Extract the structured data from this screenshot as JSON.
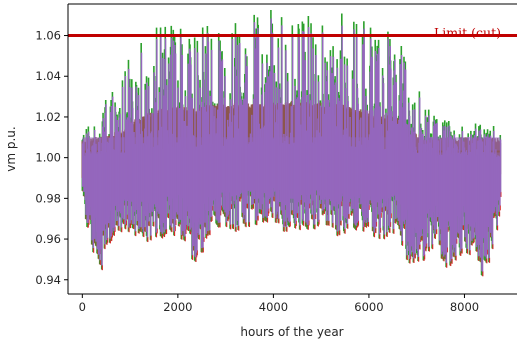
{
  "chart_data": {
    "type": "line",
    "xlabel": "hours of the year",
    "ylabel": "vm p.u.",
    "xlim": [
      -300,
      9100
    ],
    "ylim": [
      0.933,
      1.0755
    ],
    "xticks": [
      0,
      2000,
      4000,
      6000,
      8000
    ],
    "yticks": [
      0.94,
      0.96,
      0.98,
      1.0,
      1.02,
      1.04,
      1.06
    ],
    "ytick_labels": [
      "0.94",
      "0.96",
      "0.98",
      "1.00",
      "1.02",
      "1.04",
      "1.06"
    ],
    "grid": false,
    "limit_line": {
      "y": 1.06,
      "label": "Limit (cut)",
      "color": "#c00000"
    },
    "series_colors": [
      "#2ca02c",
      "#d62728",
      "#8c564b",
      "#9467bd"
    ],
    "envelope": {
      "x": [
        0,
        200,
        400,
        600,
        800,
        1000,
        1200,
        1400,
        1600,
        1800,
        2000,
        2200,
        2400,
        2600,
        2800,
        3000,
        3200,
        3400,
        3600,
        3800,
        4000,
        4200,
        4400,
        4600,
        4800,
        5000,
        5200,
        5400,
        5600,
        5800,
        6000,
        6200,
        6400,
        6600,
        6800,
        7000,
        7200,
        7400,
        7600,
        7800,
        8000,
        8200,
        8400,
        8600,
        8760
      ],
      "max": [
        1.018,
        1.02,
        1.025,
        1.03,
        1.035,
        1.05,
        1.058,
        1.06,
        1.062,
        1.065,
        1.07,
        1.068,
        1.064,
        1.066,
        1.068,
        1.067,
        1.069,
        1.068,
        1.07,
        1.069,
        1.071,
        1.068,
        1.07,
        1.069,
        1.072,
        1.071,
        1.068,
        1.07,
        1.067,
        1.066,
        1.064,
        1.06,
        1.062,
        1.06,
        1.045,
        1.04,
        1.025,
        1.02,
        1.018,
        1.016,
        1.015,
        1.016,
        1.015,
        1.014,
        1.012
      ],
      "min": [
        0.978,
        0.955,
        0.945,
        0.96,
        0.965,
        0.96,
        0.962,
        0.958,
        0.96,
        0.963,
        0.962,
        0.955,
        0.942,
        0.962,
        0.965,
        0.967,
        0.964,
        0.966,
        0.965,
        0.968,
        0.967,
        0.964,
        0.966,
        0.965,
        0.965,
        0.966,
        0.964,
        0.962,
        0.965,
        0.962,
        0.963,
        0.96,
        0.962,
        0.965,
        0.95,
        0.946,
        0.952,
        0.958,
        0.946,
        0.95,
        0.955,
        0.95,
        0.94,
        0.955,
        0.975
      ],
      "band_high": [
        1.01,
        1.01,
        1.011,
        1.012,
        1.014,
        1.018,
        1.02,
        1.022,
        1.024,
        1.025,
        1.026,
        1.025,
        1.024,
        1.026,
        1.027,
        1.026,
        1.027,
        1.026,
        1.028,
        1.027,
        1.028,
        1.027,
        1.028,
        1.027,
        1.028,
        1.027,
        1.026,
        1.027,
        1.025,
        1.024,
        1.023,
        1.022,
        1.021,
        1.02,
        1.015,
        1.012,
        1.01,
        1.01,
        1.01,
        1.01,
        1.01,
        1.01,
        1.01,
        1.01,
        1.01
      ],
      "band_mid": [
        1.0,
        1.001,
        1.001,
        1.002,
        1.002,
        1.003,
        1.003,
        1.004,
        1.004,
        1.005,
        1.005,
        1.004,
        1.003,
        1.005,
        1.005,
        1.005,
        1.006,
        1.005,
        1.006,
        1.006,
        1.006,
        1.006,
        1.006,
        1.006,
        1.007,
        1.006,
        1.006,
        1.006,
        1.005,
        1.005,
        1.005,
        1.004,
        1.004,
        1.004,
        1.003,
        1.002,
        1.002,
        1.001,
        1.001,
        1.001,
        1.001,
        1.001,
        1.0,
        1.0,
        1.0
      ]
    }
  }
}
